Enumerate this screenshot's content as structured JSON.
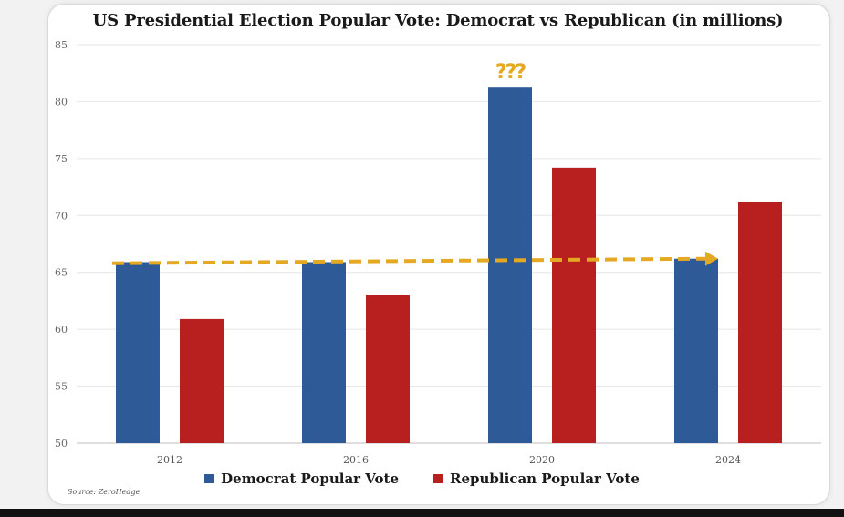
{
  "chart_data": {
    "type": "bar",
    "title": "US Presidential Election Popular Vote: Democrat vs Republican (in millions)",
    "categories": [
      "2012",
      "2016",
      "2020",
      "2024"
    ],
    "series": [
      {
        "name": "Democrat Popular Vote",
        "color": "#2e5a97",
        "values": [
          65.9,
          65.9,
          81.3,
          66.2
        ]
      },
      {
        "name": "Republican Popular Vote",
        "color": "#b8201f",
        "values": [
          60.9,
          63.0,
          74.2,
          71.2
        ]
      }
    ],
    "ylim": [
      50,
      85
    ],
    "yticks": [
      50,
      55,
      60,
      65,
      70,
      75,
      80,
      85
    ],
    "grid": true,
    "legend_position": "bottom",
    "annotations": [
      {
        "type": "dashed-arrow",
        "from_category": "2012",
        "to_category": "2024",
        "y_start": 65.8,
        "y_end": 66.2,
        "color": "#e5a823"
      },
      {
        "type": "question-marks",
        "category": "2020",
        "text": "???",
        "color": "#e5a823"
      }
    ],
    "source": "Source: ZeroHedge"
  }
}
